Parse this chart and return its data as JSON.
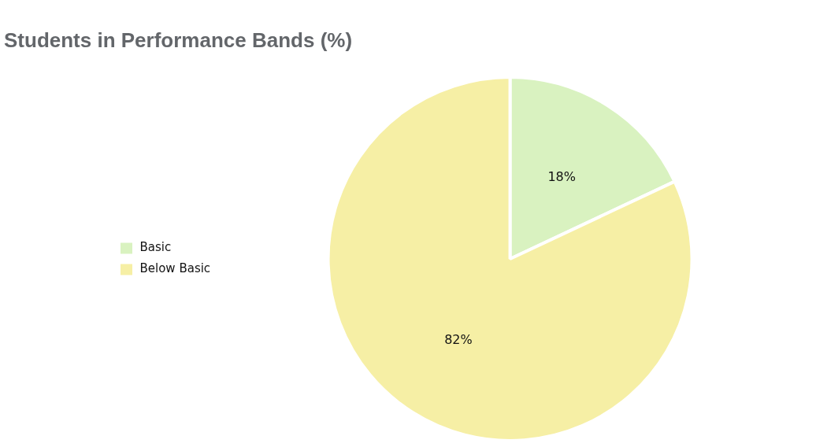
{
  "chart_data": {
    "type": "pie",
    "title": "Students in Performance Bands (%)",
    "categories": [
      "Basic",
      "Below Basic"
    ],
    "values": [
      18,
      82
    ],
    "colors": [
      "#d9f2c0",
      "#f6efa5"
    ],
    "value_labels": [
      "18%",
      "82%"
    ],
    "legend": "left"
  }
}
